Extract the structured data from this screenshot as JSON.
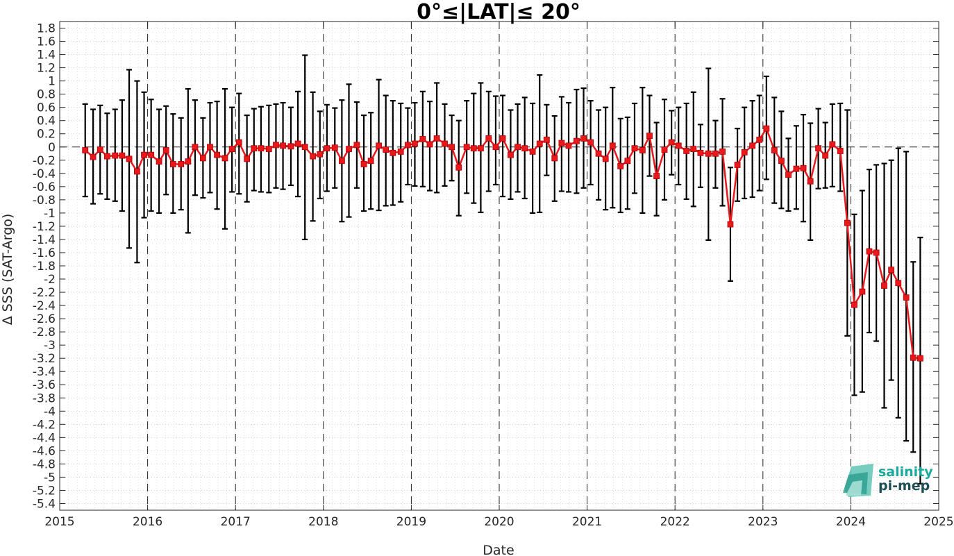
{
  "chart_data": {
    "type": "line",
    "title": "0°≤|LAT|≤ 20°",
    "xlabel": "Date",
    "ylabel": "Δ SSS (SAT-Argo)",
    "xlim": [
      2015,
      2025
    ],
    "ylim": [
      -5.5,
      1.9
    ],
    "x_ticks": [
      "2015",
      "2016",
      "2017",
      "2018",
      "2019",
      "2020",
      "2021",
      "2022",
      "2023",
      "2024",
      "2025"
    ],
    "y_ticks": [
      "1.8",
      "1.6",
      "1.4",
      "1.2",
      "1",
      "0.8",
      "0.6",
      "0.4",
      "0.2",
      "0",
      "-0.2",
      "-0.4",
      "-0.6",
      "-0.8",
      "-1",
      "-1.2",
      "-1.4",
      "-1.6",
      "-1.8",
      "-2",
      "-2.2",
      "-2.4",
      "-2.6",
      "-2.8",
      "-3",
      "-3.2",
      "-3.4",
      "-3.6",
      "-3.8",
      "-4",
      "-4.2",
      "-4.4",
      "-4.6",
      "-4.8",
      "-5",
      "-5.2",
      "-5.4"
    ],
    "grid": true,
    "zero_line": "dashed",
    "year_lines": "dashed",
    "series": [
      {
        "color": "#e8191c",
        "marker": "square",
        "x": [
          2015.29,
          2015.38,
          2015.46,
          2015.54,
          2015.63,
          2015.71,
          2015.79,
          2015.88,
          2015.96,
          2016.04,
          2016.13,
          2016.21,
          2016.29,
          2016.38,
          2016.46,
          2016.54,
          2016.63,
          2016.71,
          2016.79,
          2016.88,
          2016.96,
          2017.04,
          2017.13,
          2017.21,
          2017.29,
          2017.38,
          2017.46,
          2017.54,
          2017.63,
          2017.71,
          2017.79,
          2017.88,
          2017.96,
          2018.04,
          2018.13,
          2018.21,
          2018.29,
          2018.38,
          2018.46,
          2018.54,
          2018.63,
          2018.71,
          2018.79,
          2018.88,
          2018.96,
          2019.04,
          2019.13,
          2019.21,
          2019.29,
          2019.38,
          2019.46,
          2019.54,
          2019.63,
          2019.71,
          2019.79,
          2019.88,
          2019.96,
          2020.04,
          2020.13,
          2020.21,
          2020.29,
          2020.38,
          2020.46,
          2020.54,
          2020.63,
          2020.71,
          2020.79,
          2020.88,
          2020.96,
          2021.04,
          2021.13,
          2021.21,
          2021.29,
          2021.38,
          2021.46,
          2021.54,
          2021.63,
          2021.71,
          2021.79,
          2021.88,
          2021.96,
          2022.04,
          2022.13,
          2022.21,
          2022.29,
          2022.38,
          2022.46,
          2022.54,
          2022.63,
          2022.71,
          2022.79,
          2022.88,
          2022.96,
          2023.04,
          2023.13,
          2023.21,
          2023.29,
          2023.38,
          2023.46,
          2023.54,
          2023.63,
          2023.71,
          2023.79,
          2023.88,
          2023.96,
          2024.04,
          2024.13,
          2024.21,
          2024.29,
          2024.38,
          2024.46,
          2024.54,
          2024.63,
          2024.71,
          2024.79
        ],
        "values": [
          -0.05,
          -0.15,
          -0.04,
          -0.14,
          -0.13,
          -0.13,
          -0.18,
          -0.37,
          -0.12,
          -0.12,
          -0.22,
          -0.05,
          -0.26,
          -0.26,
          -0.22,
          0.0,
          -0.17,
          0.0,
          -0.12,
          -0.17,
          -0.03,
          0.07,
          -0.18,
          -0.02,
          -0.02,
          -0.03,
          0.03,
          0.02,
          0.01,
          0.05,
          0.0,
          -0.14,
          -0.11,
          -0.02,
          -0.01,
          -0.21,
          -0.03,
          0.03,
          -0.26,
          -0.21,
          0.02,
          -0.04,
          -0.09,
          -0.07,
          0.03,
          0.05,
          0.12,
          0.04,
          0.13,
          0.05,
          0.0,
          -0.31,
          0.0,
          -0.02,
          -0.02,
          0.13,
          0.0,
          0.13,
          -0.12,
          0.0,
          -0.02,
          -0.07,
          0.05,
          0.11,
          -0.17,
          0.06,
          0.02,
          0.09,
          0.13,
          0.07,
          -0.1,
          -0.18,
          0.02,
          -0.29,
          -0.21,
          -0.02,
          -0.05,
          0.17,
          -0.44,
          -0.04,
          0.07,
          0.02,
          -0.06,
          -0.03,
          -0.09,
          -0.1,
          -0.1,
          -0.07,
          -1.17,
          -0.27,
          -0.08,
          0.02,
          0.11,
          0.28,
          -0.05,
          -0.21,
          -0.42,
          -0.33,
          -0.32,
          -0.52,
          -0.02,
          -0.13,
          0.04,
          -0.06,
          -1.15,
          -2.39,
          -2.19,
          -1.58,
          -1.6,
          -2.1,
          -1.86,
          -2.06,
          -2.28,
          -3.19,
          -3.2
        ],
        "err_upper": [
          0.65,
          0.57,
          0.63,
          0.51,
          0.57,
          0.71,
          1.17,
          1.0,
          0.83,
          0.72,
          0.57,
          0.62,
          0.5,
          0.44,
          0.88,
          0.71,
          0.44,
          0.67,
          0.69,
          0.88,
          0.6,
          0.81,
          0.48,
          0.58,
          0.61,
          0.63,
          0.65,
          0.67,
          0.6,
          0.84,
          1.39,
          0.83,
          0.54,
          0.64,
          0.59,
          0.71,
          0.95,
          0.68,
          0.48,
          0.52,
          1.02,
          0.78,
          0.7,
          0.66,
          0.59,
          0.67,
          0.84,
          0.69,
          0.97,
          0.65,
          0.48,
          0.4,
          0.7,
          0.81,
          0.97,
          0.84,
          0.77,
          0.78,
          0.56,
          0.65,
          0.75,
          0.66,
          1.09,
          0.64,
          0.47,
          0.76,
          0.67,
          0.87,
          0.89,
          0.7,
          0.56,
          0.6,
          0.9,
          0.43,
          0.45,
          0.66,
          0.9,
          0.78,
          0.37,
          0.72,
          0.55,
          0.6,
          0.66,
          0.83,
          0.34,
          1.19,
          0.4,
          0.73,
          -0.31,
          0.28,
          0.6,
          0.7,
          0.78,
          1.07,
          0.75,
          0.54,
          0.13,
          0.32,
          0.49,
          0.36,
          0.58,
          0.37,
          0.65,
          0.66,
          0.56,
          -1.02,
          -0.66,
          -0.34,
          -0.27,
          -0.25,
          -0.2,
          -0.02,
          -0.07,
          -1.74,
          -1.37
        ],
        "err_lower": [
          -0.75,
          -0.86,
          -0.71,
          -0.79,
          -0.82,
          -0.97,
          -1.53,
          -1.75,
          -1.07,
          -0.97,
          -1.0,
          -0.72,
          -1.0,
          -0.95,
          -1.3,
          -0.73,
          -0.77,
          -0.69,
          -0.94,
          -1.24,
          -0.68,
          -0.71,
          -0.83,
          -0.66,
          -0.68,
          -0.69,
          -0.62,
          -0.64,
          -0.58,
          -0.75,
          -1.4,
          -1.12,
          -0.78,
          -0.67,
          -0.62,
          -1.13,
          -1.06,
          -0.62,
          -0.97,
          -0.94,
          -0.96,
          -0.89,
          -0.88,
          -0.83,
          -0.57,
          -0.59,
          -0.6,
          -0.66,
          -0.69,
          -0.59,
          -0.51,
          -1.04,
          -0.7,
          -0.85,
          -0.99,
          -0.67,
          -0.57,
          -0.75,
          -0.79,
          -0.68,
          -0.78,
          -1.0,
          -0.99,
          -0.43,
          -0.82,
          -0.67,
          -0.68,
          -0.7,
          -0.62,
          -0.57,
          -0.8,
          -0.95,
          -0.92,
          -0.99,
          -0.94,
          -0.7,
          -1.0,
          -0.44,
          -1.04,
          -0.8,
          -0.42,
          -0.57,
          -0.79,
          -0.9,
          -0.61,
          -1.41,
          -0.62,
          -0.89,
          -2.03,
          -0.82,
          -0.78,
          -0.76,
          -0.66,
          -0.49,
          -0.85,
          -0.93,
          -0.97,
          -0.94,
          -1.13,
          -1.41,
          -0.63,
          -0.62,
          -0.6,
          -0.67,
          -2.86,
          -3.76,
          -3.71,
          -2.81,
          -2.94,
          -3.95,
          -3.53,
          -4.1,
          -4.45,
          -4.62,
          -5.1
        ]
      }
    ]
  },
  "logo": {
    "line1": "salinity",
    "line2": "pi-mep"
  }
}
